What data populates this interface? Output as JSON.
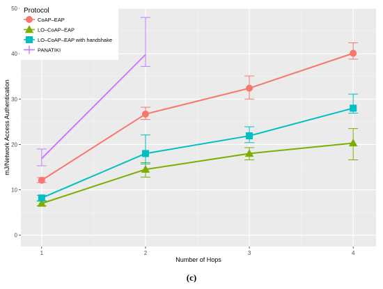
{
  "chart_data": {
    "type": "line",
    "title": "",
    "xlabel": "Number of Hops",
    "ylabel": "mJ/Network Access Authentication",
    "caption": "(c)",
    "legend_title": "Protocol",
    "legend_position": "top-left",
    "grid": true,
    "x_ticks": [
      "1",
      "2",
      "3",
      "4"
    ],
    "y_ticks": [
      "0",
      "10",
      "20",
      "30",
      "40",
      "50"
    ],
    "xlim": [
      0.8,
      4.22
    ],
    "ylim": [
      -2.5,
      50
    ],
    "series": [
      {
        "name": "CoAP–EAP",
        "color": "#f8766d",
        "marker": "circle",
        "x": [
          1,
          2,
          3,
          4
        ],
        "values": [
          12.1,
          26.7,
          32.4,
          40.1
        ],
        "err_low": [
          11.6,
          25.5,
          30.0,
          38.8
        ],
        "err_high": [
          12.7,
          28.2,
          35.1,
          42.4
        ]
      },
      {
        "name": "LO–CoAP–EAP",
        "color": "#7cae00",
        "marker": "triangle",
        "x": [
          1,
          2,
          3,
          4
        ],
        "values": [
          7.0,
          14.5,
          18.0,
          20.3
        ],
        "err_low": [
          6.5,
          12.8,
          16.6,
          16.6
        ],
        "err_high": [
          7.5,
          16.0,
          19.3,
          23.5
        ]
      },
      {
        "name": "LO–CoAP–EAP with handshake",
        "color": "#00bfc4",
        "marker": "square",
        "x": [
          1,
          2,
          3,
          4
        ],
        "values": [
          8.2,
          18.0,
          21.9,
          28.0
        ],
        "err_low": [
          7.6,
          15.7,
          20.4,
          26.9
        ],
        "err_high": [
          8.8,
          22.1,
          23.9,
          31.1
        ]
      },
      {
        "name": "PANATIKI",
        "color": "#c77cff",
        "marker": "plus",
        "x": [
          1,
          2
        ],
        "values": [
          16.9,
          39.8
        ],
        "err_low": [
          15.3,
          37.2
        ],
        "err_high": [
          19.0,
          48.0
        ]
      }
    ]
  }
}
